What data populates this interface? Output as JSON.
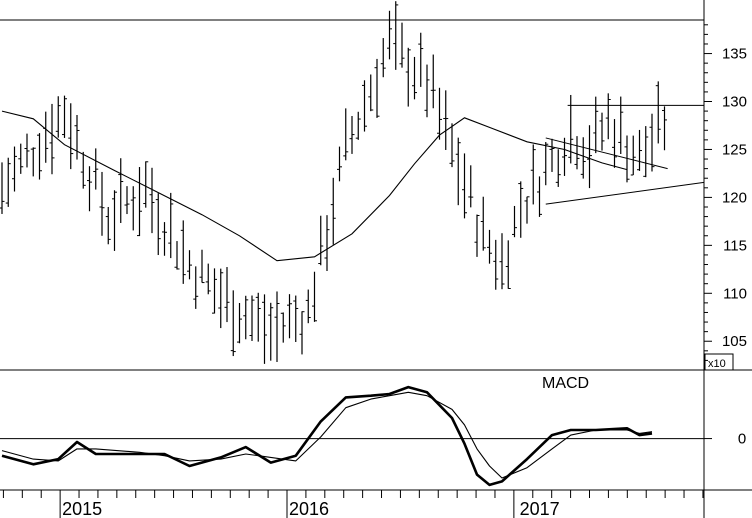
{
  "chart_data": [
    {
      "type": "ohlc",
      "title": "",
      "y_scale_label": "x10",
      "ylim": [
        102,
        138.5
      ],
      "yticks": [
        105,
        110,
        115,
        120,
        125,
        130,
        135
      ],
      "grid": false,
      "x_labels": [
        "2015",
        "2016",
        "2017"
      ],
      "moving_average": [
        {
          "t": 0,
          "v": 129.0
        },
        {
          "t": 5,
          "v": 128.2
        },
        {
          "t": 10,
          "v": 125.5
        },
        {
          "t": 18,
          "v": 122.8
        },
        {
          "t": 25,
          "v": 120.5
        },
        {
          "t": 32,
          "v": 118.2
        },
        {
          "t": 38,
          "v": 116.0
        },
        {
          "t": 44,
          "v": 113.4
        },
        {
          "t": 50,
          "v": 113.8
        },
        {
          "t": 56,
          "v": 116.2
        },
        {
          "t": 62,
          "v": 120.2
        },
        {
          "t": 66,
          "v": 123.5
        },
        {
          "t": 70,
          "v": 126.5
        },
        {
          "t": 74,
          "v": 128.3
        },
        {
          "t": 78,
          "v": 127.3
        },
        {
          "t": 84,
          "v": 125.8
        },
        {
          "t": 90,
          "v": 125.0
        },
        {
          "t": 96,
          "v": 123.6
        },
        {
          "t": 100,
          "v": 122.9
        }
      ],
      "trendlines": [
        {
          "from": {
            "t": 90.5,
            "v": 129.6
          },
          "to": {
            "t": 115,
            "v": 129.6
          }
        },
        {
          "from": {
            "t": 87,
            "v": 119.3
          },
          "to": {
            "t": 115,
            "v": 121.8
          }
        },
        {
          "from": {
            "t": 87,
            "v": 126.2
          },
          "to": {
            "t": 106.5,
            "v": 123.0
          }
        }
      ],
      "summary_points": [
        {
          "t": 0,
          "v": 121
        },
        {
          "t": 10,
          "v": 129
        },
        {
          "t": 17,
          "v": 118
        },
        {
          "t": 23,
          "v": 121
        },
        {
          "t": 30,
          "v": 113
        },
        {
          "t": 36,
          "v": 109
        },
        {
          "t": 43,
          "v": 106
        },
        {
          "t": 49,
          "v": 108
        },
        {
          "t": 55,
          "v": 125
        },
        {
          "t": 62,
          "v": 136
        },
        {
          "t": 68,
          "v": 132
        },
        {
          "t": 72,
          "v": 125
        },
        {
          "t": 77,
          "v": 116
        },
        {
          "t": 80,
          "v": 113
        },
        {
          "t": 83,
          "v": 119
        },
        {
          "t": 87,
          "v": 123
        },
        {
          "t": 91,
          "v": 127
        },
        {
          "t": 94,
          "v": 125
        },
        {
          "t": 97,
          "v": 128
        },
        {
          "t": 102,
          "v": 124
        },
        {
          "t": 104,
          "v": 126
        },
        {
          "t": 106,
          "v": 128
        }
      ]
    },
    {
      "type": "line",
      "title": "",
      "annotation": "MACD",
      "ylim": [
        -3,
        4
      ],
      "yticks": [
        0
      ],
      "zero_line": true,
      "grid": false,
      "series": [
        {
          "points": [
            {
              "t": 0,
              "v": -1.0
            },
            {
              "t": 5,
              "v": -1.5
            },
            {
              "t": 9,
              "v": -1.2
            },
            {
              "t": 12,
              "v": -0.2
            },
            {
              "t": 15,
              "v": -0.9
            },
            {
              "t": 22,
              "v": -0.9
            },
            {
              "t": 26,
              "v": -0.9
            },
            {
              "t": 30,
              "v": -1.6
            },
            {
              "t": 35,
              "v": -1.1
            },
            {
              "t": 39,
              "v": -0.5
            },
            {
              "t": 43,
              "v": -1.4
            },
            {
              "t": 47,
              "v": -1.0
            },
            {
              "t": 51,
              "v": 1.0
            },
            {
              "t": 55,
              "v": 2.4
            },
            {
              "t": 59,
              "v": 2.5
            },
            {
              "t": 62,
              "v": 2.6
            },
            {
              "t": 65,
              "v": 3.0
            },
            {
              "t": 68,
              "v": 2.7
            },
            {
              "t": 72,
              "v": 1.2
            },
            {
              "t": 74,
              "v": -0.3
            },
            {
              "t": 76,
              "v": -2.1
            },
            {
              "t": 78,
              "v": -2.7
            },
            {
              "t": 80,
              "v": -2.5
            },
            {
              "t": 84,
              "v": -1.2
            },
            {
              "t": 88,
              "v": 0.2
            },
            {
              "t": 91,
              "v": 0.5
            },
            {
              "t": 95,
              "v": 0.5
            },
            {
              "t": 100,
              "v": 0.6
            },
            {
              "t": 102,
              "v": 0.2
            },
            {
              "t": 104,
              "v": 0.3
            }
          ]
        },
        {
          "points": [
            {
              "t": 0,
              "v": -0.7
            },
            {
              "t": 5,
              "v": -1.2
            },
            {
              "t": 9,
              "v": -1.3
            },
            {
              "t": 12,
              "v": -0.6
            },
            {
              "t": 15,
              "v": -0.6
            },
            {
              "t": 22,
              "v": -0.8
            },
            {
              "t": 26,
              "v": -1.0
            },
            {
              "t": 30,
              "v": -1.3
            },
            {
              "t": 35,
              "v": -1.2
            },
            {
              "t": 39,
              "v": -0.9
            },
            {
              "t": 43,
              "v": -1.1
            },
            {
              "t": 47,
              "v": -1.3
            },
            {
              "t": 51,
              "v": 0.1
            },
            {
              "t": 55,
              "v": 1.8
            },
            {
              "t": 59,
              "v": 2.3
            },
            {
              "t": 62,
              "v": 2.5
            },
            {
              "t": 65,
              "v": 2.7
            },
            {
              "t": 68,
              "v": 2.5
            },
            {
              "t": 72,
              "v": 1.7
            },
            {
              "t": 74,
              "v": 0.8
            },
            {
              "t": 76,
              "v": -0.6
            },
            {
              "t": 78,
              "v": -1.6
            },
            {
              "t": 80,
              "v": -2.3
            },
            {
              "t": 84,
              "v": -1.7
            },
            {
              "t": 88,
              "v": -0.6
            },
            {
              "t": 91,
              "v": 0.2
            },
            {
              "t": 95,
              "v": 0.5
            },
            {
              "t": 100,
              "v": 0.5
            },
            {
              "t": 102,
              "v": 0.3
            },
            {
              "t": 104,
              "v": 0.4
            }
          ]
        }
      ]
    }
  ],
  "colors": {
    "ink": "#000000",
    "background": "#ffffff"
  }
}
